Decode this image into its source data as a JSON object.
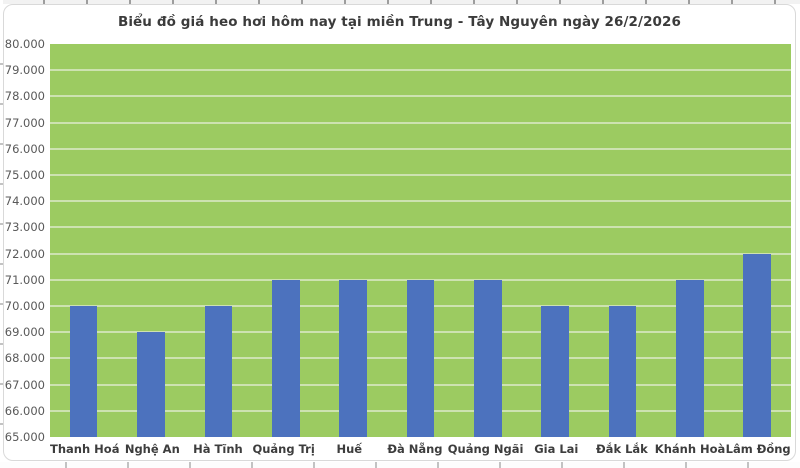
{
  "chart": {
    "title": "Biểu đồ giá heo hơi hôm nay tại miền Trung - Tây Nguyên ngày 26/2/2026"
  },
  "chart_data": {
    "type": "bar",
    "title": "Biểu đồ giá heo hơi hôm nay tại miền Trung - Tây Nguyên ngày 26/2/2026",
    "categories": [
      "Thanh Hoá",
      "Nghệ An",
      "Hà Tĩnh",
      "Quảng Trị",
      "Huế",
      "Đà Nẵng",
      "Quảng Ngãi",
      "Gia Lai",
      "Đắk Lắk",
      "Khánh Hoà",
      "Lâm Đồng"
    ],
    "values": [
      70000,
      69000,
      70000,
      71000,
      71000,
      71000,
      71000,
      70000,
      70000,
      71000,
      72000
    ],
    "xlabel": "",
    "ylabel": "",
    "ylim": [
      65000,
      80000
    ],
    "y_step": 1000,
    "y_tick_labels": [
      "80.000",
      "79.000",
      "78.000",
      "77.000",
      "76.000",
      "75.000",
      "74.000",
      "73.000",
      "72.000",
      "71.000",
      "70.000",
      "69.000",
      "68.000",
      "67.000",
      "66.000",
      "65.000"
    ],
    "grid": true,
    "legend": "none",
    "colors": {
      "bar": "#4C72BE",
      "plot_bg": "#9CCB61",
      "gridline": "#CDE2B0",
      "title_text": "#3B3B3B",
      "axis_text": "#595959",
      "category_text": "#3D3D3D",
      "card_border": "#D9D9D9"
    }
  }
}
